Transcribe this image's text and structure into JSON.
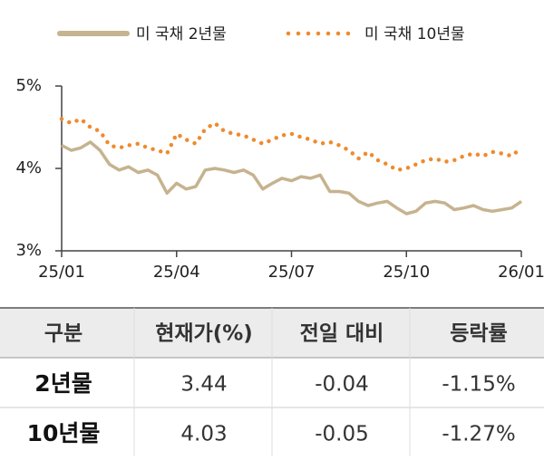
{
  "chart_data": {
    "type": "line",
    "x": [
      0,
      0.25,
      0.5,
      0.75,
      1,
      1.25,
      1.5,
      1.75,
      2,
      2.25,
      2.5,
      2.75,
      3,
      3.25,
      3.5,
      3.75,
      4,
      4.25,
      4.5,
      4.75,
      5,
      5.25,
      5.5,
      5.75,
      6,
      6.25,
      6.5,
      6.75,
      7,
      7.25,
      7.5,
      7.75,
      8,
      8.25,
      8.5,
      8.75,
      9,
      9.25,
      9.5,
      9.75,
      10,
      10.25,
      10.5,
      10.75,
      11,
      11.25,
      11.5,
      11.75,
      12
    ],
    "series": [
      {
        "name": "미 국채 2년물",
        "color": "#c6b38f",
        "style": "solid",
        "values": [
          4.28,
          4.22,
          4.25,
          4.32,
          4.22,
          4.05,
          3.98,
          4.02,
          3.95,
          3.98,
          3.92,
          3.7,
          3.82,
          3.75,
          3.78,
          3.98,
          4.0,
          3.98,
          3.95,
          3.98,
          3.92,
          3.75,
          3.82,
          3.88,
          3.85,
          3.9,
          3.88,
          3.92,
          3.72,
          3.72,
          3.7,
          3.6,
          3.55,
          3.58,
          3.6,
          3.52,
          3.45,
          3.48,
          3.58,
          3.6,
          3.58,
          3.5,
          3.52,
          3.55,
          3.5,
          3.48,
          3.5,
          3.52,
          3.6
        ]
      },
      {
        "name": "미 국채 10년물",
        "color": "#ef8a2e",
        "style": "dotted",
        "values": [
          4.6,
          4.55,
          4.6,
          4.5,
          4.45,
          4.28,
          4.25,
          4.28,
          4.3,
          4.25,
          4.22,
          4.18,
          4.42,
          4.35,
          4.3,
          4.48,
          4.55,
          4.45,
          4.42,
          4.4,
          4.35,
          4.3,
          4.35,
          4.4,
          4.42,
          4.38,
          4.35,
          4.3,
          4.32,
          4.28,
          4.22,
          4.12,
          4.2,
          4.1,
          4.05,
          3.98,
          4.0,
          4.05,
          4.1,
          4.12,
          4.08,
          4.1,
          4.15,
          4.18,
          4.15,
          4.2,
          4.18,
          4.15,
          4.25
        ]
      }
    ],
    "xlim": [
      0,
      12
    ],
    "xticks": [
      {
        "value": 0,
        "label": "25/01"
      },
      {
        "value": 3,
        "label": "25/04"
      },
      {
        "value": 6,
        "label": "25/07"
      },
      {
        "value": 9,
        "label": "25/10"
      },
      {
        "value": 12,
        "label": "26/01"
      }
    ],
    "ylim": [
      3,
      5
    ],
    "yticks": [
      {
        "value": 3,
        "label": "3%"
      },
      {
        "value": 4,
        "label": "4%"
      },
      {
        "value": 5,
        "label": "5%"
      }
    ]
  },
  "table": {
    "header": [
      "구분",
      "현재가(%)",
      "전일 대비",
      "등락률"
    ],
    "rows": [
      [
        "2년물",
        "3.44",
        "-0.04",
        "-1.15%"
      ],
      [
        "10년물",
        "4.03",
        "-0.05",
        "-1.27%"
      ]
    ]
  }
}
